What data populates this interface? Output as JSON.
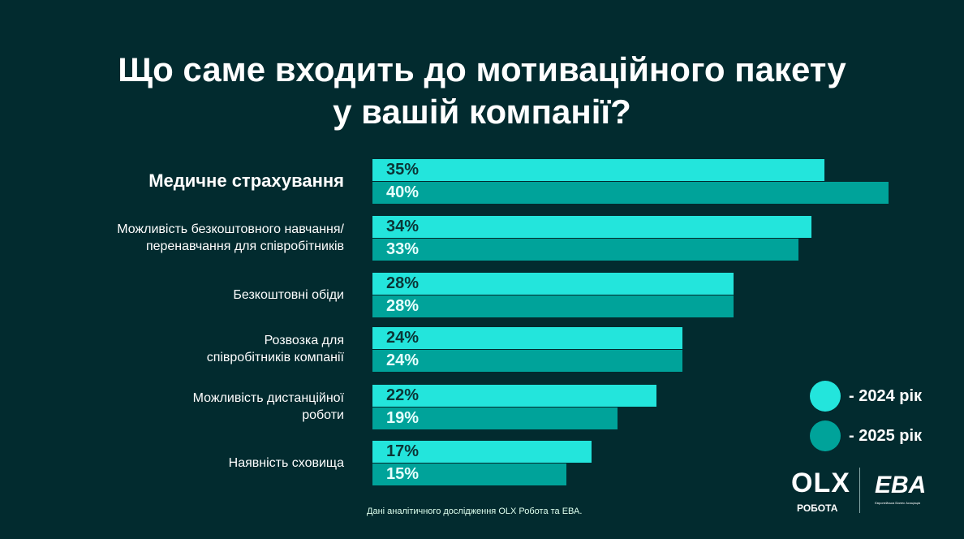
{
  "chart_data": {
    "type": "bar",
    "title": "Що саме входить до мотиваційного пакету у вашій компанії?",
    "title_lines": [
      "Що саме входить до мотиваційного пакету",
      "у вашій компанії?"
    ],
    "categories": [
      "Медичне страхування",
      "Можливість безкоштовного навчання/ перенавчання для співробітників",
      "Безкоштовні обіди",
      "Розвозка для співробітників компанії",
      "Можливість дистанційної роботи",
      "Наявність сховища"
    ],
    "category_lines": [
      [
        "Медичне страхування"
      ],
      [
        "Можливість безкоштовного навчання/",
        "перенавчання для співробітників"
      ],
      [
        "Безкоштовні обіди"
      ],
      [
        "Розвозка для",
        "співробітників компанії"
      ],
      [
        "Можливість дистанційної",
        "роботи"
      ],
      [
        "Наявність сховища"
      ]
    ],
    "series": [
      {
        "name": "- 2024 рік",
        "color": "#23e5dc",
        "values": [
          35,
          34,
          28,
          24,
          22,
          17
        ]
      },
      {
        "name": "- 2025 рік",
        "color": "#00a39a",
        "values": [
          40,
          33,
          28,
          24,
          19,
          15
        ]
      }
    ],
    "unit": "%",
    "xlim": [
      0,
      40
    ],
    "legend": "right"
  },
  "source": "Дані аналітичного дослідження OLX Робота та ЕВА.",
  "logos": {
    "olx": "OLX",
    "olx_sub": "РОБОТА",
    "eba": "EBA",
    "eba_sub": "Європейська Бізнес Асоціація"
  }
}
